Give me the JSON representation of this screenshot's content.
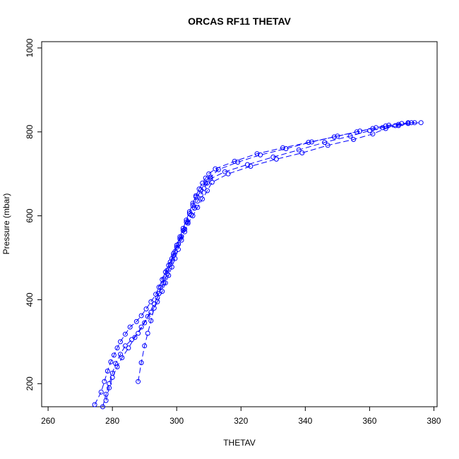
{
  "chart_data": {
    "type": "line",
    "title": "ORCAS RF11 THETAV",
    "xlabel": "THETAV",
    "ylabel": "Pressure (mbar)",
    "xlim": [
      258,
      381
    ],
    "ylim": [
      1015,
      145
    ],
    "y_reversed": true,
    "x_ticks": [
      260,
      280,
      300,
      320,
      340,
      360,
      380
    ],
    "y_ticks": [
      200,
      400,
      600,
      800,
      1000
    ],
    "marker": "open-circle",
    "line_style": "dashed",
    "series_color": "#0000ff",
    "grid": false,
    "series": [
      {
        "x": [
          274.5,
          276.5,
          277.5,
          278.5,
          279.5,
          280.5,
          281.5,
          282.5,
          284,
          285.5,
          287.5,
          289,
          290.5,
          292,
          293.5,
          294.5,
          295.5,
          296.5,
          297.5,
          298.5,
          299.5,
          300.5,
          301.5,
          302.5,
          303.5,
          304.5,
          305.5,
          306.5,
          307.5,
          308.5,
          309.5,
          310.5,
          315,
          322,
          330,
          338,
          346,
          354,
          360,
          364,
          368,
          372,
          376
        ],
        "y": [
          150,
          180,
          205,
          230,
          252,
          268,
          285,
          300,
          318,
          335,
          348,
          362,
          378,
          395,
          413,
          430,
          448,
          466,
          482,
          498,
          515,
          532,
          550,
          568,
          585,
          602,
          618,
          635,
          650,
          665,
          678,
          688,
          705,
          722,
          740,
          757,
          775,
          790,
          803,
          810,
          815,
          820,
          822
        ]
      },
      {
        "x": [
          277,
          278,
          279,
          280,
          281,
          282.5,
          284,
          286,
          288,
          290,
          292,
          294,
          295.5,
          296.5,
          297.5,
          298.5,
          299.5,
          300.5,
          301.5,
          302.5,
          303.5,
          305,
          306.5,
          308,
          309.5,
          311,
          316,
          323,
          331,
          339,
          347,
          355,
          361,
          365,
          369,
          373
        ],
        "y": [
          145,
          175,
          200,
          225,
          248,
          270,
          290,
          305,
          320,
          345,
          370,
          395,
          420,
          440,
          458,
          478,
          498,
          520,
          542,
          562,
          582,
          600,
          620,
          640,
          660,
          680,
          700,
          718,
          735,
          750,
          768,
          782,
          795,
          808,
          815,
          822
        ]
      },
      {
        "x": [
          278,
          279,
          280,
          281.5,
          283,
          285,
          287,
          289,
          291,
          293,
          294.5,
          296,
          297,
          298,
          299,
          300,
          301,
          302,
          303,
          304,
          305,
          306,
          307.5,
          309,
          310.5,
          313,
          319,
          326,
          334,
          342,
          350,
          357,
          362,
          366,
          370,
          374
        ],
        "y": [
          160,
          190,
          215,
          240,
          262,
          285,
          310,
          335,
          360,
          390,
          415,
          440,
          462,
          484,
          505,
          525,
          545,
          565,
          585,
          605,
          625,
          645,
          662,
          678,
          692,
          710,
          728,
          745,
          760,
          776,
          790,
          802,
          810,
          816,
          820,
          822
        ]
      },
      {
        "x": [
          288,
          289,
          290,
          291,
          292,
          293,
          294,
          295,
          296,
          297,
          298,
          299,
          300,
          301,
          302,
          303,
          304,
          305,
          306,
          307,
          308,
          309,
          310,
          312,
          318,
          325,
          333,
          341,
          349,
          356,
          361,
          365,
          369,
          372
        ],
        "y": [
          205,
          250,
          290,
          320,
          350,
          380,
          405,
          430,
          450,
          470,
          490,
          510,
          530,
          550,
          570,
          590,
          610,
          630,
          648,
          664,
          678,
          690,
          700,
          712,
          730,
          748,
          762,
          775,
          788,
          800,
          808,
          814,
          818,
          822
        ]
      }
    ]
  }
}
